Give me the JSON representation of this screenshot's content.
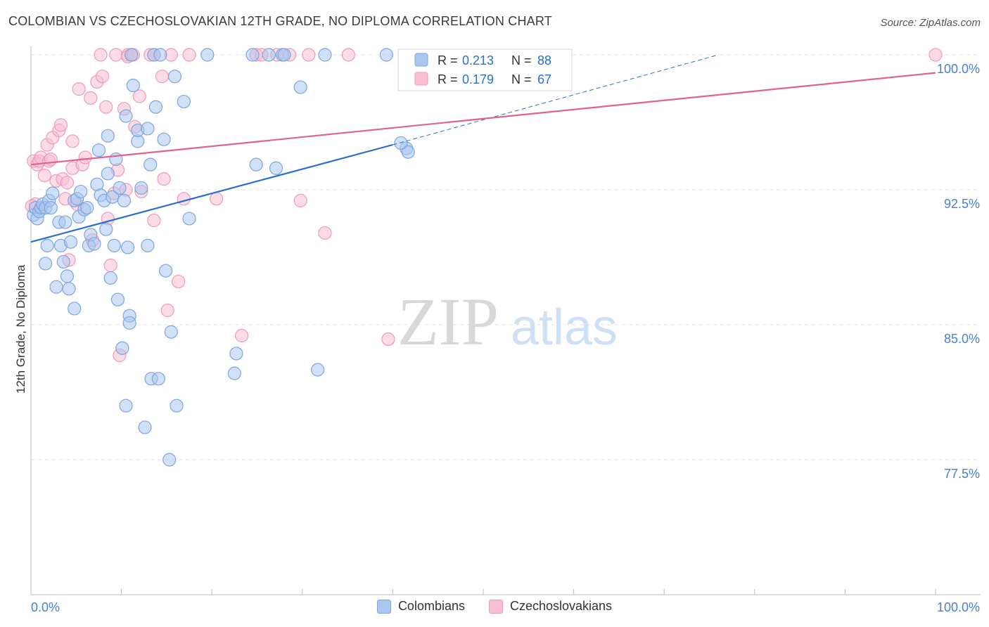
{
  "header": {
    "title": "COLOMBIAN VS CZECHOSLOVAKIAN 12TH GRADE, NO DIPLOMA CORRELATION CHART",
    "source": "Source: ZipAtlas.com"
  },
  "watermark": {
    "zip": "ZIP",
    "atlas": "atlas"
  },
  "colors": {
    "blue_fill": "#a9c6ee",
    "blue_stroke": "#7ea5dd",
    "blue_line": "#2b6fcd",
    "pink_fill": "#f7bfd1",
    "pink_stroke": "#ef9ab6",
    "pink_line": "#e0628e",
    "tick_label": "#4a7fd0"
  },
  "chart_data": {
    "type": "scatter",
    "title": "COLOMBIAN VS CZECHOSLOVAKIAN 12TH GRADE, NO DIPLOMA CORRELATION CHART",
    "xlabel": "",
    "ylabel": "12th Grade, No Diploma",
    "xlim": [
      0,
      100
    ],
    "ylim": [
      70.0,
      100.5
    ],
    "x_tick_labels": [
      "0.0%",
      "100.0%"
    ],
    "y_ticks": [
      {
        "value": 100.0,
        "label": "100.0%"
      },
      {
        "value": 92.5,
        "label": "92.5%"
      },
      {
        "value": 85.0,
        "label": "85.0%"
      },
      {
        "value": 77.5,
        "label": "77.5%"
      }
    ],
    "legend": [
      {
        "series": "Colombians",
        "r_label": "R =",
        "r_value": "0.213",
        "n_label": "N =",
        "n_value": "88"
      },
      {
        "series": "Czechoslovakians",
        "r_label": "R =",
        "r_value": "0.179",
        "n_label": "N =",
        "n_value": "67"
      }
    ],
    "series": [
      {
        "name": "Colombians",
        "trend": {
          "x0": 0,
          "y0": 89.6,
          "x1": 40,
          "y1": 95.0,
          "dash_x1": 76,
          "dash_y1": 100.0
        },
        "points": [
          [
            0.3,
            91.1
          ],
          [
            0.5,
            91.5
          ],
          [
            0.7,
            90.9
          ],
          [
            0.9,
            91.3
          ],
          [
            1.1,
            91.5
          ],
          [
            1.3,
            91.7
          ],
          [
            1.6,
            88.4
          ],
          [
            1.6,
            91.5
          ],
          [
            1.8,
            89.4
          ],
          [
            2.0,
            91.9
          ],
          [
            2.2,
            91.5
          ],
          [
            2.4,
            92.3
          ],
          [
            2.8,
            87.1
          ],
          [
            3.1,
            90.7
          ],
          [
            3.3,
            89.4
          ],
          [
            3.6,
            88.5
          ],
          [
            3.8,
            90.7
          ],
          [
            4.0,
            87.7
          ],
          [
            4.2,
            87.0
          ],
          [
            4.4,
            89.6
          ],
          [
            4.8,
            85.9
          ],
          [
            4.8,
            91.9
          ],
          [
            5.1,
            92.0
          ],
          [
            5.3,
            91.0
          ],
          [
            5.5,
            92.4
          ],
          [
            5.9,
            91.4
          ],
          [
            6.2,
            91.5
          ],
          [
            6.4,
            89.4
          ],
          [
            6.6,
            90.0
          ],
          [
            7.0,
            89.5
          ],
          [
            7.3,
            92.8
          ],
          [
            7.5,
            94.7
          ],
          [
            7.7,
            92.2
          ],
          [
            8.1,
            91.9
          ],
          [
            8.3,
            90.3
          ],
          [
            8.5,
            93.4
          ],
          [
            8.5,
            95.5
          ],
          [
            8.8,
            87.6
          ],
          [
            9.0,
            92.1
          ],
          [
            9.2,
            89.4
          ],
          [
            9.4,
            94.2
          ],
          [
            9.6,
            86.4
          ],
          [
            9.8,
            92.6
          ],
          [
            10.1,
            83.7
          ],
          [
            10.3,
            91.9
          ],
          [
            10.5,
            80.5
          ],
          [
            10.5,
            96.6
          ],
          [
            10.7,
            89.3
          ],
          [
            10.9,
            85.5
          ],
          [
            10.9,
            85.1
          ],
          [
            11.1,
            100.0
          ],
          [
            11.3,
            98.3
          ],
          [
            11.8,
            95.2
          ],
          [
            11.8,
            95.8
          ],
          [
            12.2,
            92.6
          ],
          [
            12.6,
            79.3
          ],
          [
            12.9,
            95.9
          ],
          [
            12.9,
            89.4
          ],
          [
            13.2,
            93.9
          ],
          [
            13.3,
            82.0
          ],
          [
            13.6,
            100.0
          ],
          [
            13.8,
            97.1
          ],
          [
            14.1,
            82.0
          ],
          [
            14.3,
            100.0
          ],
          [
            14.7,
            95.3
          ],
          [
            14.9,
            88.0
          ],
          [
            15.3,
            77.5
          ],
          [
            15.5,
            84.6
          ],
          [
            15.9,
            98.8
          ],
          [
            16.1,
            80.5
          ],
          [
            16.9,
            97.4
          ],
          [
            17.5,
            90.9
          ],
          [
            19.5,
            100.0
          ],
          [
            22.5,
            82.3
          ],
          [
            22.7,
            83.4
          ],
          [
            24.5,
            100.0
          ],
          [
            24.9,
            93.9
          ],
          [
            26.3,
            100.0
          ],
          [
            27.1,
            93.7
          ],
          [
            27.8,
            100.0
          ],
          [
            28.0,
            100.0
          ],
          [
            29.8,
            98.2
          ],
          [
            31.7,
            82.5
          ],
          [
            32.5,
            100.0
          ],
          [
            39.3,
            100.0
          ],
          [
            41.5,
            94.8
          ],
          [
            41.7,
            94.6
          ],
          [
            40.9,
            95.1
          ]
        ]
      },
      {
        "name": "Czechoslovakians",
        "trend": {
          "x0": 0,
          "y0": 93.9,
          "x1": 100,
          "y1": 99.0
        },
        "points": [
          [
            0.3,
            94.1
          ],
          [
            0.5,
            91.7
          ],
          [
            0.7,
            93.9
          ],
          [
            0.9,
            94.1
          ],
          [
            1.1,
            94.3
          ],
          [
            1.5,
            93.3
          ],
          [
            1.8,
            95.0
          ],
          [
            2.0,
            94.1
          ],
          [
            2.2,
            94.2
          ],
          [
            2.4,
            95.4
          ],
          [
            2.8,
            93.0
          ],
          [
            3.1,
            95.8
          ],
          [
            3.3,
            96.1
          ],
          [
            3.5,
            93.1
          ],
          [
            3.8,
            92.0
          ],
          [
            4.0,
            92.9
          ],
          [
            4.2,
            88.6
          ],
          [
            4.6,
            93.7
          ],
          [
            4.6,
            95.2
          ],
          [
            5.1,
            91.7
          ],
          [
            5.3,
            98.1
          ],
          [
            5.7,
            93.9
          ],
          [
            6.0,
            94.3
          ],
          [
            6.6,
            97.6
          ],
          [
            6.8,
            89.7
          ],
          [
            7.3,
            98.5
          ],
          [
            7.7,
            100.0
          ],
          [
            7.9,
            98.8
          ],
          [
            8.3,
            97.1
          ],
          [
            8.5,
            90.9
          ],
          [
            8.8,
            88.3
          ],
          [
            9.2,
            92.3
          ],
          [
            9.4,
            100.0
          ],
          [
            9.6,
            93.6
          ],
          [
            9.8,
            83.3
          ],
          [
            10.3,
            97.0
          ],
          [
            10.5,
            92.5
          ],
          [
            10.7,
            100.0
          ],
          [
            10.7,
            99.9
          ],
          [
            11.1,
            100.0
          ],
          [
            11.3,
            100.0
          ],
          [
            11.5,
            96.0
          ],
          [
            12.0,
            97.7
          ],
          [
            12.2,
            92.4
          ],
          [
            13.2,
            100.0
          ],
          [
            13.6,
            100.0
          ],
          [
            13.6,
            90.8
          ],
          [
            14.5,
            98.8
          ],
          [
            14.7,
            93.1
          ],
          [
            15.1,
            85.8
          ],
          [
            15.5,
            100.0
          ],
          [
            16.3,
            87.4
          ],
          [
            16.9,
            92.0
          ],
          [
            17.5,
            100.0
          ],
          [
            20.5,
            92.0
          ],
          [
            23.3,
            84.4
          ],
          [
            24.9,
            100.0
          ],
          [
            25.5,
            100.0
          ],
          [
            27.2,
            100.0
          ],
          [
            28.6,
            100.0
          ],
          [
            29.8,
            91.9
          ],
          [
            30.7,
            100.0
          ],
          [
            32.5,
            90.1
          ],
          [
            35.1,
            100.0
          ],
          [
            39.5,
            84.2
          ],
          [
            100.0,
            100.0
          ],
          [
            0.1,
            91.6
          ]
        ]
      }
    ]
  }
}
